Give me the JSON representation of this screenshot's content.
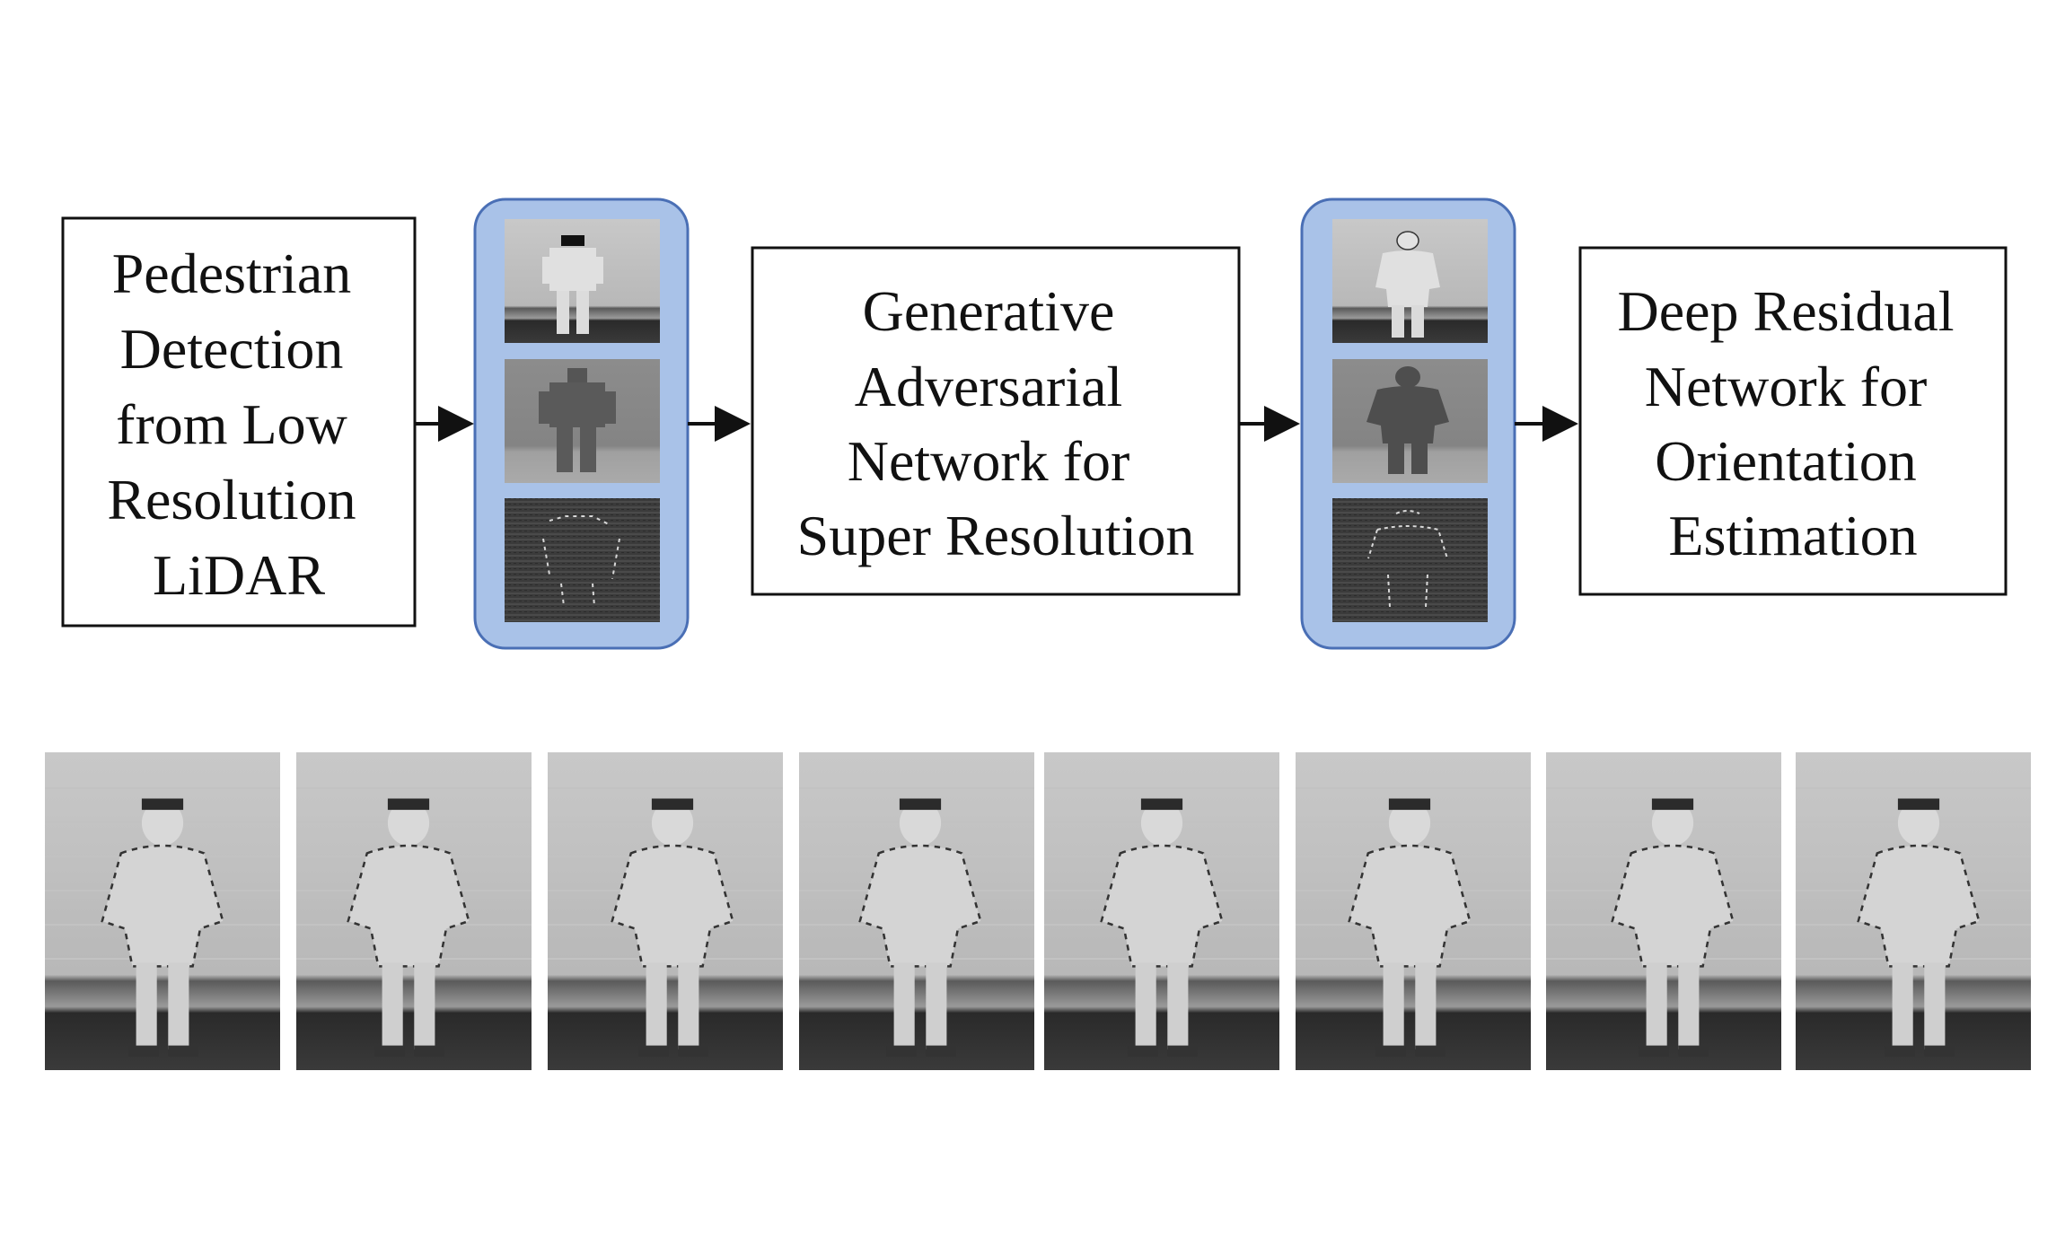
{
  "pipeline": {
    "stage1": {
      "lines": [
        "Pedestrian",
        "Detection",
        "from Low",
        "Resolution",
        "LiDAR"
      ]
    },
    "stage2": {
      "lines": [
        "Generative",
        "Adversarial",
        "Network for",
        "Super Resolution"
      ]
    },
    "stage3": {
      "lines": [
        "Deep Residual",
        "Network for",
        "Orientation",
        "Estimation"
      ]
    },
    "low_res_stack": {
      "thumbnails": [
        "low-res-intensity-image",
        "low-res-range-image",
        "low-res-edge-image"
      ]
    },
    "super_res_stack": {
      "thumbnails": [
        "super-res-intensity-image",
        "super-res-range-image",
        "super-res-edge-image"
      ]
    }
  },
  "gallery": {
    "images": [
      {
        "label": "pedestrian-front"
      },
      {
        "label": "pedestrian-front-right"
      },
      {
        "label": "pedestrian-right"
      },
      {
        "label": "pedestrian-back-right"
      },
      {
        "label": "pedestrian-back"
      },
      {
        "label": "pedestrian-back-left"
      },
      {
        "label": "pedestrian-left"
      },
      {
        "label": "pedestrian-front-left"
      }
    ]
  },
  "colors": {
    "stack_fill": "#a9c2e8",
    "stack_border": "#4a6fb5",
    "box_border": "#111111",
    "thumb_bg": "#b9b9b9"
  }
}
